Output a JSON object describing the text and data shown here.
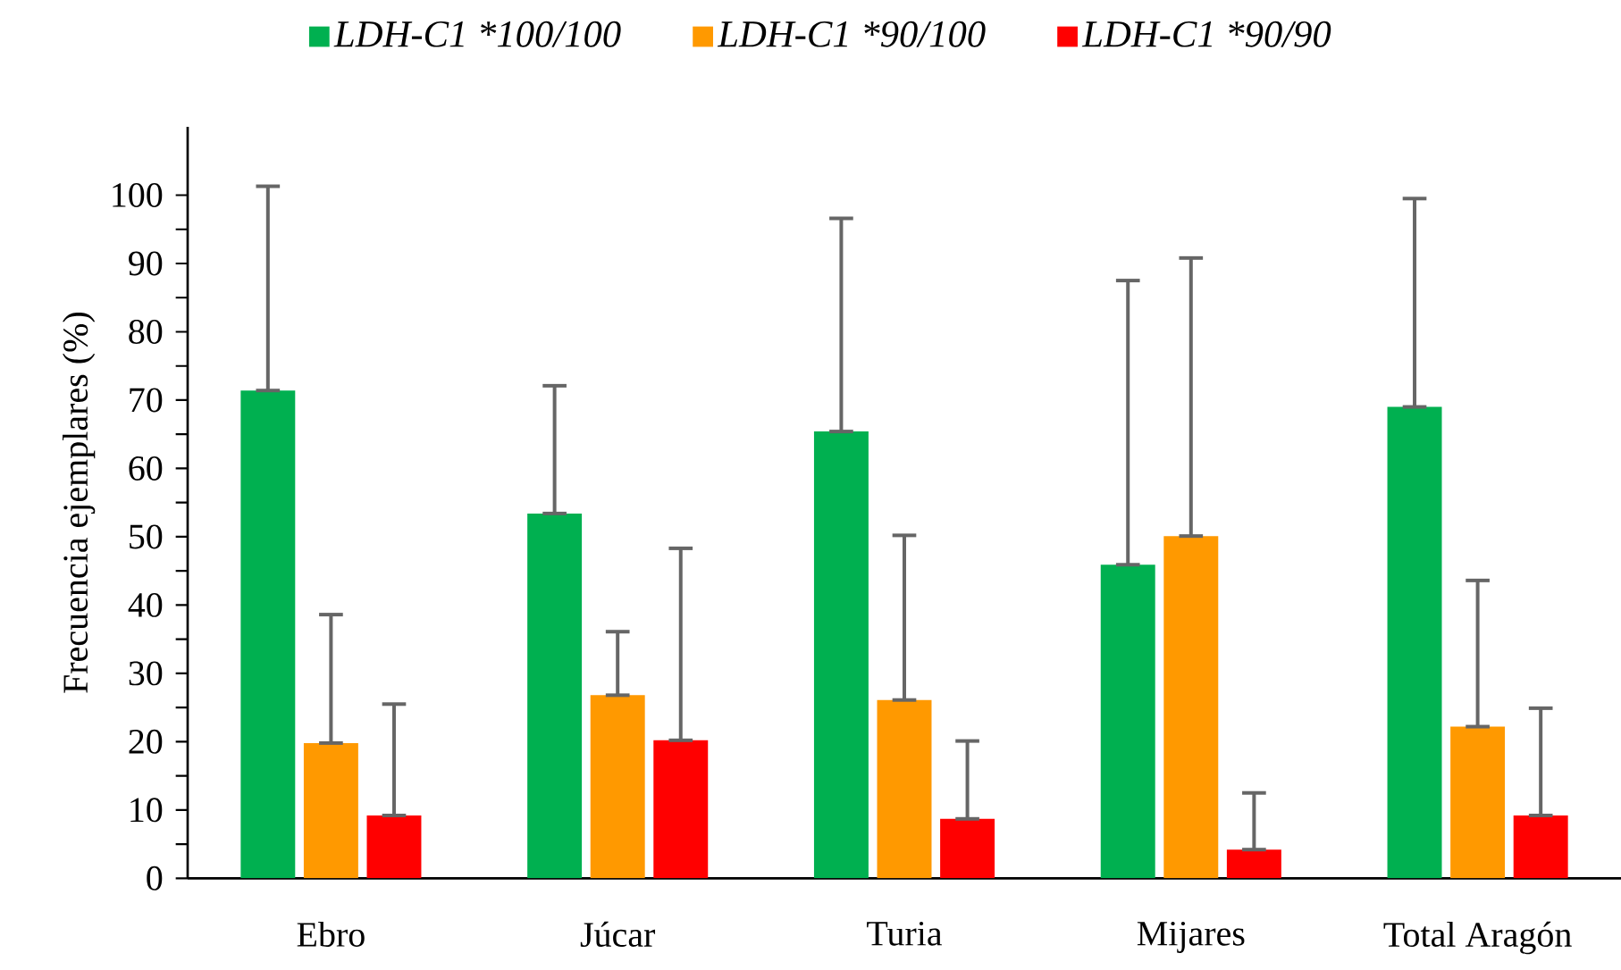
{
  "chart_data": {
    "type": "bar",
    "ylabel": "Frecuencia ejemplares (%)",
    "categories": [
      "Ebro",
      "Júcar",
      "Turia",
      "Mijares",
      "Total Aragón"
    ],
    "series": [
      {
        "name": "LDH-C1 *100/100",
        "color": "#00b050",
        "values": [
          71.4,
          53.4,
          65.4,
          45.9,
          69.0
        ],
        "errors": [
          [
            71.4,
            101.3
          ],
          [
            53.4,
            72.1
          ],
          [
            65.4,
            96.6
          ],
          [
            45.9,
            87.5
          ],
          [
            69.0,
            99.5
          ]
        ]
      },
      {
        "name": "LDH-C1 *90/100",
        "color": "#ff9900",
        "values": [
          19.8,
          26.8,
          26.1,
          50.1,
          22.2
        ],
        "errors": [
          [
            19.8,
            38.6
          ],
          [
            26.8,
            36.1
          ],
          [
            26.1,
            50.2
          ],
          [
            50.1,
            90.8
          ],
          [
            22.2,
            43.6
          ]
        ]
      },
      {
        "name": "LDH-C1 *90/90",
        "color": "#ff0000",
        "values": [
          9.2,
          20.2,
          8.7,
          4.2,
          9.2
        ],
        "errors": [
          [
            9.2,
            25.5
          ],
          [
            20.2,
            48.3
          ],
          [
            8.7,
            20.1
          ],
          [
            4.2,
            12.5
          ],
          [
            9.2,
            24.9
          ]
        ]
      }
    ],
    "ylim": [
      0,
      110
    ],
    "yticks": [
      0,
      {
        "value": 5,
        "label": null
      },
      10,
      {
        "value": 15,
        "label": null
      },
      20,
      {
        "value": 25,
        "label": null
      },
      30,
      {
        "value": 35,
        "label": null
      },
      40,
      {
        "value": 45,
        "label": null
      },
      50,
      {
        "value": 55,
        "label": null
      },
      60,
      {
        "value": 65,
        "label": null
      },
      70,
      {
        "value": 75,
        "label": null
      },
      80,
      {
        "value": 85,
        "label": null
      },
      90,
      {
        "value": 95,
        "label": null
      },
      100
    ],
    "grid": false,
    "legend": "top"
  }
}
